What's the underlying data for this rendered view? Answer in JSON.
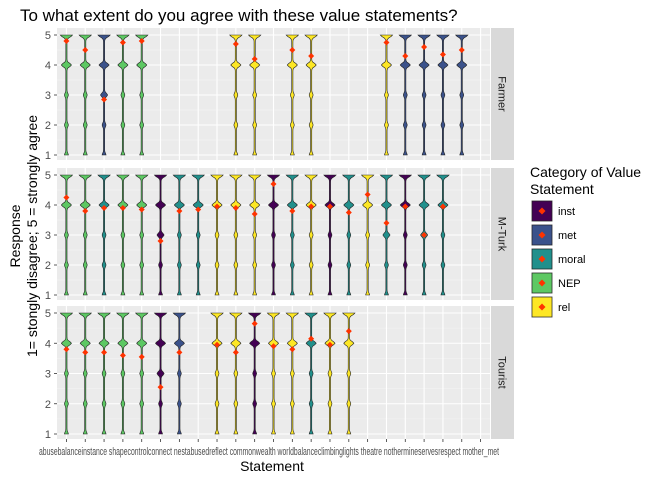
{
  "chart_data": {
    "type": "violin",
    "title": "To what extent do you agree with these value statements?",
    "xlabel": "Statement",
    "ylabel_lines": [
      "Response",
      "1= stongly disagree; 5 = strongly agree"
    ],
    "ylim": [
      1,
      5
    ],
    "yticks": [
      1,
      2,
      3,
      4,
      5
    ],
    "grid": true,
    "legend": {
      "title_lines": [
        "Category of Value",
        "Statement"
      ],
      "placement": "right",
      "entries": [
        {
          "name": "inst",
          "color": "#440154"
        },
        {
          "name": "met",
          "color": "#3b528b"
        },
        {
          "name": "moral",
          "color": "#21908c"
        },
        {
          "name": "NEP",
          "color": "#5dc863"
        },
        {
          "name": "rel",
          "color": "#fde725"
        }
      ]
    },
    "mean_marker_color": "#ff3300",
    "x_tick_text": "abusebalanceinstance shapecontrolconnect nestabusedreflect commonwealth worldbalanceclimbinglights theatre nothermineservesrespect mother_met",
    "statements": [
      "s1",
      "s2",
      "s3",
      "s4",
      "s5",
      "s6",
      "s7",
      "s8",
      "s9",
      "s10",
      "s11",
      "s12",
      "s13",
      "s14",
      "s15",
      "s16",
      "s17",
      "s18",
      "s19",
      "s20",
      "s21",
      "s22",
      "s23"
    ],
    "panels": [
      {
        "label": "Farmer",
        "violins": [
          {
            "x": 1,
            "category": "NEP",
            "mean": 4.8
          },
          {
            "x": 2,
            "category": "NEP",
            "mean": 4.5
          },
          {
            "x": 3,
            "category": "met",
            "mean": 2.85
          },
          {
            "x": 4,
            "category": "NEP",
            "mean": 4.75
          },
          {
            "x": 5,
            "category": "NEP",
            "mean": 4.8
          },
          {
            "x": 10,
            "category": "rel",
            "mean": 4.7
          },
          {
            "x": 11,
            "category": "rel",
            "mean": 4.2
          },
          {
            "x": 13,
            "category": "rel",
            "mean": 4.5
          },
          {
            "x": 14,
            "category": "rel",
            "mean": 4.3
          },
          {
            "x": 18,
            "category": "rel",
            "mean": 4.75
          },
          {
            "x": 19,
            "category": "met",
            "mean": 4.3
          },
          {
            "x": 20,
            "category": "met",
            "mean": 4.6
          },
          {
            "x": 21,
            "category": "met",
            "mean": 4.35
          },
          {
            "x": 22,
            "category": "met",
            "mean": 4.5
          }
        ]
      },
      {
        "label": "M-Turk",
        "violins": [
          {
            "x": 1,
            "category": "NEP",
            "mean": 4.25
          },
          {
            "x": 2,
            "category": "NEP",
            "mean": 3.8
          },
          {
            "x": 3,
            "category": "moral",
            "mean": 3.9
          },
          {
            "x": 4,
            "category": "NEP",
            "mean": 3.9
          },
          {
            "x": 5,
            "category": "NEP",
            "mean": 3.85
          },
          {
            "x": 6,
            "category": "inst",
            "mean": 2.8
          },
          {
            "x": 7,
            "category": "moral",
            "mean": 3.8
          },
          {
            "x": 8,
            "category": "moral",
            "mean": 3.85
          },
          {
            "x": 9,
            "category": "rel",
            "mean": 3.95
          },
          {
            "x": 10,
            "category": "rel",
            "mean": 3.9
          },
          {
            "x": 11,
            "category": "rel",
            "mean": 3.7
          },
          {
            "x": 12,
            "category": "inst",
            "mean": 4.7
          },
          {
            "x": 13,
            "category": "moral",
            "mean": 3.8
          },
          {
            "x": 14,
            "category": "rel",
            "mean": 3.95
          },
          {
            "x": 15,
            "category": "inst",
            "mean": 3.95
          },
          {
            "x": 16,
            "category": "moral",
            "mean": 3.75
          },
          {
            "x": 17,
            "category": "rel",
            "mean": 4.35
          },
          {
            "x": 18,
            "category": "moral",
            "mean": 3.4
          },
          {
            "x": 19,
            "category": "inst",
            "mean": 3.95
          },
          {
            "x": 20,
            "category": "moral",
            "mean": 3.0
          },
          {
            "x": 21,
            "category": "moral",
            "mean": 3.95
          }
        ]
      },
      {
        "label": "Tourist",
        "violins": [
          {
            "x": 1,
            "category": "NEP",
            "mean": 3.8
          },
          {
            "x": 2,
            "category": "NEP",
            "mean": 3.7
          },
          {
            "x": 3,
            "category": "NEP",
            "mean": 3.7
          },
          {
            "x": 4,
            "category": "NEP",
            "mean": 3.6
          },
          {
            "x": 5,
            "category": "NEP",
            "mean": 3.55
          },
          {
            "x": 6,
            "category": "inst",
            "mean": 2.55
          },
          {
            "x": 7,
            "category": "met",
            "mean": 3.7
          },
          {
            "x": 9,
            "category": "rel",
            "mean": 3.95
          },
          {
            "x": 10,
            "category": "rel",
            "mean": 3.7
          },
          {
            "x": 11,
            "category": "inst",
            "mean": 4.65
          },
          {
            "x": 12,
            "category": "rel",
            "mean": 3.9
          },
          {
            "x": 13,
            "category": "rel",
            "mean": 3.8
          },
          {
            "x": 14,
            "category": "moral",
            "mean": 4.15
          },
          {
            "x": 15,
            "category": "rel",
            "mean": 3.95
          },
          {
            "x": 16,
            "category": "rel",
            "mean": 4.4
          }
        ]
      }
    ]
  }
}
